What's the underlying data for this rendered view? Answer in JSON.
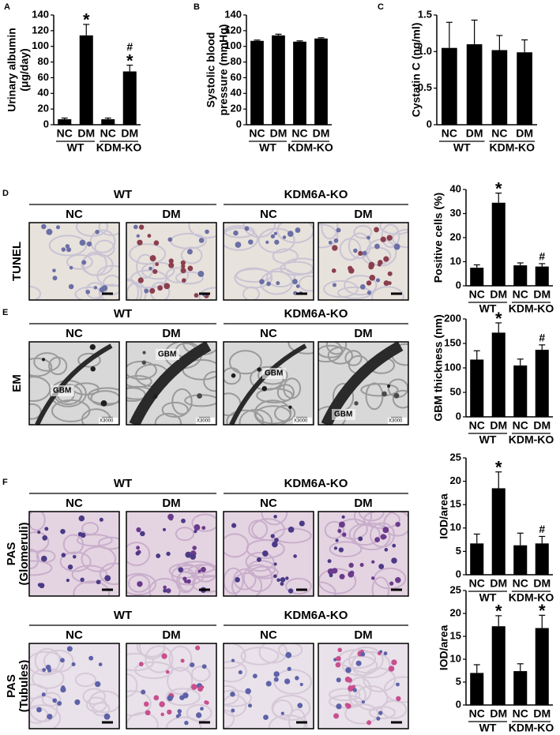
{
  "chart_data": [
    {
      "type": "bar",
      "panel": "A",
      "ylabel": [
        "Urinary albumin",
        "(μg/day)"
      ],
      "categories": [
        "NC",
        "DM",
        "NC",
        "DM"
      ],
      "groups": [
        "WT",
        "KDM-KO"
      ],
      "values": [
        7,
        114,
        7,
        68
      ],
      "errors": [
        1.5,
        14,
        1.5,
        8
      ],
      "annotations": [
        null,
        [
          "*"
        ],
        null,
        [
          "#",
          "*"
        ]
      ],
      "color": "#000000",
      "ylim": [
        0,
        140
      ],
      "yticks": [
        0,
        20,
        40,
        60,
        80,
        100,
        120,
        140
      ]
    },
    {
      "type": "bar",
      "panel": "B",
      "ylabel": [
        "Systolic blood",
        "pressure (mmHg)"
      ],
      "categories": [
        "NC",
        "DM",
        "NC",
        "DM"
      ],
      "groups": [
        "WT",
        "KDM-KO"
      ],
      "values": [
        107,
        114,
        106,
        110
      ],
      "errors": [
        1,
        1.5,
        1,
        1
      ],
      "annotations": [
        null,
        null,
        null,
        null
      ],
      "color": "#000000",
      "ylim": [
        0,
        140
      ],
      "yticks": [
        0,
        20,
        40,
        60,
        80,
        100,
        120,
        140
      ]
    },
    {
      "type": "bar",
      "panel": "C",
      "ylabel": [
        "Cystatin C (ng/ml)"
      ],
      "categories": [
        "NC",
        "DM",
        "NC",
        "DM"
      ],
      "groups": [
        "WT",
        "KDM-KO"
      ],
      "values": [
        1.05,
        1.1,
        1.02,
        0.99
      ],
      "errors": [
        0.35,
        0.33,
        0.2,
        0.17
      ],
      "annotations": [
        null,
        null,
        null,
        null
      ],
      "color": "#000000",
      "ylim": [
        0,
        1.5
      ],
      "yticks": [
        0,
        0.5,
        {
          "value": 1,
          "label": "1.0"
        },
        1.5
      ]
    },
    {
      "type": "bar",
      "ylabel": [
        "Positive cells (%)"
      ],
      "categories": [
        "NC",
        "DM",
        "NC",
        "DM"
      ],
      "groups": [
        "WT",
        "KDM-KO"
      ],
      "values": [
        7.5,
        34.5,
        8.5,
        8
      ],
      "errors": [
        1.2,
        4,
        1,
        1.2
      ],
      "annotations": [
        null,
        [
          "*"
        ],
        null,
        [
          "#"
        ]
      ],
      "color": "#000000",
      "ylim": [
        0,
        40
      ],
      "yticks": [
        0,
        10,
        20,
        30,
        40
      ]
    },
    {
      "type": "bar",
      "ylabel": [
        "GBM thickness (nm)"
      ],
      "categories": [
        "NC",
        "DM",
        "NC",
        "DM"
      ],
      "groups": [
        "WT",
        "KDM-KO"
      ],
      "values": [
        117,
        172,
        105,
        137
      ],
      "errors": [
        18,
        20,
        13,
        10
      ],
      "annotations": [
        null,
        [
          "*"
        ],
        null,
        [
          "#"
        ]
      ],
      "color": "#000000",
      "ylim": [
        0,
        200
      ],
      "yticks": [
        0,
        50,
        100,
        150,
        200
      ]
    },
    {
      "type": "bar",
      "ylabel": [
        "IOD/area"
      ],
      "categories": [
        "NC",
        "DM",
        "NC",
        "DM"
      ],
      "groups": [
        "WT",
        "KDM-KO"
      ],
      "values": [
        6.7,
        18.5,
        6.3,
        6.7
      ],
      "errors": [
        2,
        3.5,
        2.6,
        1.5
      ],
      "annotations": [
        null,
        [
          "*"
        ],
        null,
        [
          "#"
        ]
      ],
      "color": "#000000",
      "ylim": [
        0,
        25
      ],
      "yticks": [
        0,
        5,
        10,
        15,
        20,
        25
      ]
    },
    {
      "type": "bar",
      "ylabel": [
        "IOD/area"
      ],
      "categories": [
        "NC",
        "DM",
        "NC",
        "DM"
      ],
      "groups": [
        "WT",
        "KDM-KO"
      ],
      "values": [
        7,
        17.2,
        7.4,
        16.8
      ],
      "errors": [
        1.8,
        2.3,
        1.6,
        2.8
      ],
      "annotations": [
        null,
        [
          "*"
        ],
        null,
        [
          "*"
        ]
      ],
      "color": "#000000",
      "ylim": [
        0,
        25
      ],
      "yticks": [
        0,
        5,
        10,
        15,
        20,
        25
      ]
    }
  ],
  "micrographs": [
    {
      "label": "D",
      "row_label": [
        "TUNEL"
      ],
      "groups": [
        "WT",
        "KDM6A-KO"
      ],
      "columns": [
        "NC",
        "DM",
        "NC",
        "DM"
      ]
    },
    {
      "label": "E",
      "row_label": [
        "EM"
      ],
      "groups": [
        "WT",
        "KDM6A-KO"
      ],
      "columns": [
        "NC",
        "DM",
        "NC",
        "DM"
      ],
      "overlays": [
        [
          "GBM",
          "X3000"
        ],
        [
          "GBM",
          "X3000"
        ],
        [
          "GBM",
          "X3000"
        ],
        [
          "GBM",
          "X3000"
        ]
      ]
    },
    {
      "label": "F",
      "row_label": [
        "PAS",
        "(Glomeruli)"
      ],
      "groups": [
        "WT",
        "KDM6A-KO"
      ],
      "columns": [
        "NC",
        "DM",
        "NC",
        "DM"
      ]
    },
    {
      "row_label": [
        "PAS",
        "(Tubules)"
      ],
      "groups": [
        "WT",
        "KDM6A-KO"
      ],
      "columns": [
        "NC",
        "DM",
        "NC",
        "DM"
      ]
    }
  ]
}
